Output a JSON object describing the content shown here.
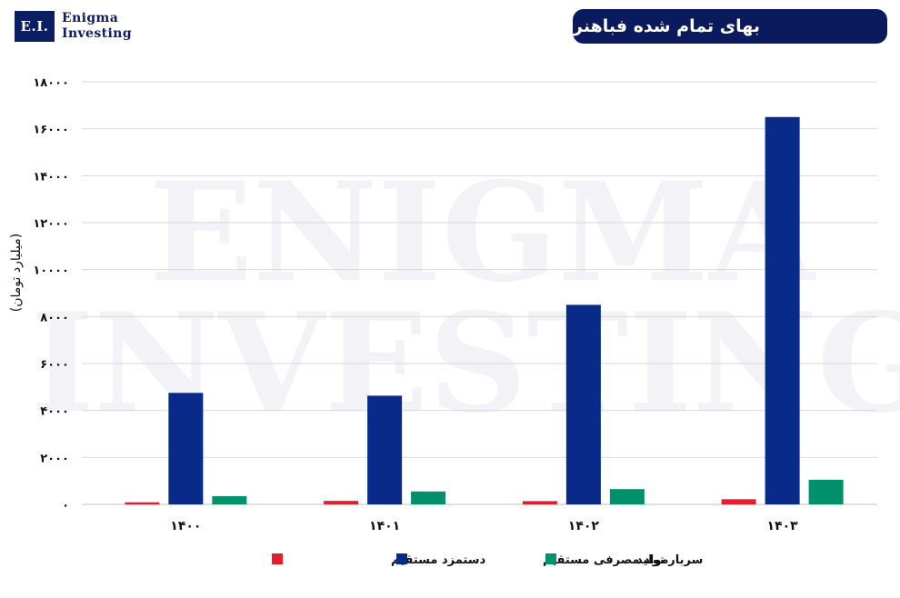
{
  "brand": {
    "abbr": "E.I.",
    "line1": "Enigma",
    "line2": "Investing",
    "watermark_line1": "ENIGMA",
    "watermark_line2": "INVESTING"
  },
  "chart_data": {
    "type": "bar",
    "title": "بهای تمام شده فباهنر",
    "ylabel": "(میلیارد تومان)",
    "xlabel": "",
    "categories": [
      "۱۴۰۰",
      "۱۴۰۱",
      "۱۴۰۲",
      "۱۴۰۳"
    ],
    "ylim": [
      0,
      18000
    ],
    "yticks": [
      0,
      2000,
      4000,
      6000,
      8000,
      10000,
      12000,
      14000,
      16000,
      18000
    ],
    "ytick_labels": [
      "۰",
      "۲۰۰۰",
      "۴۰۰۰",
      "۶۰۰۰",
      "۸۰۰۰",
      "۱۰۰۰۰",
      "۱۲۰۰۰",
      "۱۴۰۰۰",
      "۱۶۰۰۰",
      "۱۸۰۰۰"
    ],
    "grid": true,
    "legend_position": "bottom",
    "series": [
      {
        "name": "دستمزد مستقیم",
        "color": "#e31e2d",
        "values": [
          90,
          150,
          140,
          220
        ]
      },
      {
        "name": "مواد مصرفی مستقیم",
        "color": "#0a2a8a",
        "values": [
          4750,
          4630,
          8500,
          16500
        ]
      },
      {
        "name": "سربار تولید",
        "color": "#00916a",
        "values": [
          350,
          550,
          650,
          1050
        ]
      }
    ]
  }
}
